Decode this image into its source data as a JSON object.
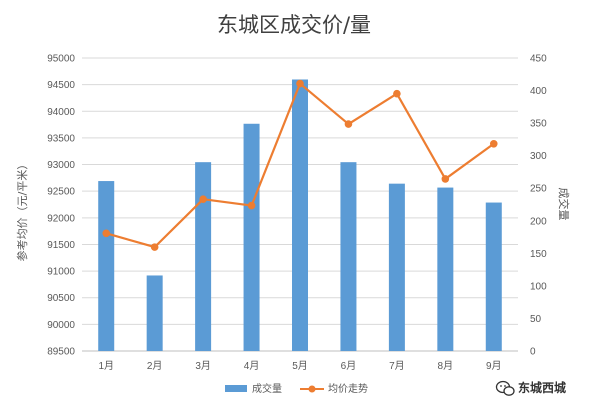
{
  "chart_data": {
    "type": "bar+line",
    "title": "东城区成交价/量",
    "categories": [
      "1月",
      "2月",
      "3月",
      "4月",
      "5月",
      "6月",
      "7月",
      "8月",
      "9月"
    ],
    "series": [
      {
        "name": "成交量",
        "type": "bar",
        "axis": "right",
        "color": "#5B9BD5",
        "values": [
          261,
          116,
          290,
          349,
          417,
          290,
          257,
          251,
          228
        ]
      },
      {
        "name": "均价走势",
        "type": "line",
        "axis": "left",
        "color": "#ED7D31",
        "values": [
          91710,
          91450,
          92350,
          92230,
          94520,
          93760,
          94330,
          92730,
          93390
        ]
      }
    ],
    "y_left": {
      "label": "参考均价（元/平米）",
      "min": 89500,
      "max": 95000,
      "step": 500,
      "ticks": [
        "89500",
        "90000",
        "90500",
        "91000",
        "91500",
        "92000",
        "92500",
        "93000",
        "93500",
        "94000",
        "94500",
        "95000"
      ]
    },
    "y_right": {
      "label": "成交量",
      "min": 0,
      "max": 450,
      "step": 50,
      "ticks": [
        "0",
        "50",
        "100",
        "150",
        "200",
        "250",
        "300",
        "350",
        "400",
        "450"
      ]
    },
    "grid": true,
    "legend": "bottom"
  },
  "watermark": {
    "text": "东城西城",
    "icon": "wechat-icon"
  }
}
